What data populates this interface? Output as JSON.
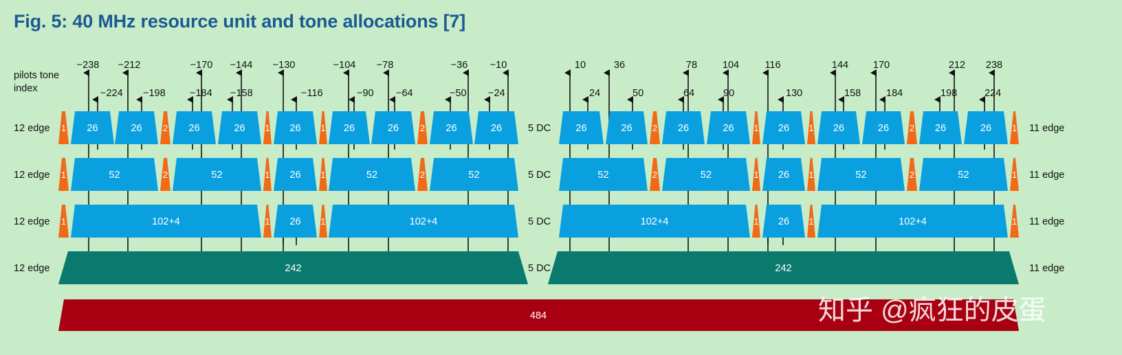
{
  "title": "Fig. 5: 40 MHz resource unit and tone allocations [7]",
  "watermark": "知乎 @疯狂的皮蛋",
  "colors": {
    "background": "#c8ecc8",
    "title": "#1a5a92",
    "ru": "#0aa0e0",
    "edge": "#f06a18",
    "ru242": "#0a7a6e",
    "ru484": "#a80010"
  },
  "pilots": {
    "label_line1": "pilots tone",
    "label_line2": "index",
    "tall": [
      "−238",
      "−212",
      "−170",
      "−144",
      "−130",
      "−104",
      "−78",
      "−36",
      "−10",
      "10",
      "36",
      "78",
      "104",
      "116",
      "144",
      "170",
      "212",
      "238"
    ],
    "short": [
      "−224",
      "−198",
      "−184",
      "−158",
      "−116",
      "−90",
      "−64",
      "−50",
      "−24",
      "24",
      "50",
      "64",
      "90",
      "130",
      "158",
      "184",
      "198",
      "224"
    ]
  },
  "rows": [
    {
      "left_label": "12 edge",
      "right_label": "11 edge",
      "dc_label": "5 DC",
      "left": [
        {
          "kind": "edge",
          "label": "1"
        },
        {
          "kind": "ru",
          "label": "26"
        },
        {
          "kind": "ru",
          "label": "26"
        },
        {
          "kind": "edge",
          "label": "2"
        },
        {
          "kind": "ru",
          "label": "26"
        },
        {
          "kind": "ru",
          "label": "26"
        },
        {
          "kind": "edge",
          "label": "1"
        },
        {
          "kind": "ru",
          "label": "26"
        },
        {
          "kind": "edge",
          "label": "1"
        },
        {
          "kind": "ru",
          "label": "26"
        },
        {
          "kind": "ru",
          "label": "26"
        },
        {
          "kind": "edge",
          "label": "2"
        },
        {
          "kind": "ru",
          "label": "26"
        },
        {
          "kind": "ru",
          "label": "26"
        }
      ],
      "right": [
        {
          "kind": "ru",
          "label": "26"
        },
        {
          "kind": "ru",
          "label": "26"
        },
        {
          "kind": "edge",
          "label": "2"
        },
        {
          "kind": "ru",
          "label": "26"
        },
        {
          "kind": "ru",
          "label": "26"
        },
        {
          "kind": "edge",
          "label": "1"
        },
        {
          "kind": "ru",
          "label": "26"
        },
        {
          "kind": "edge",
          "label": "1"
        },
        {
          "kind": "ru",
          "label": "26"
        },
        {
          "kind": "ru",
          "label": "26"
        },
        {
          "kind": "edge",
          "label": "2"
        },
        {
          "kind": "ru",
          "label": "26"
        },
        {
          "kind": "ru",
          "label": "26"
        },
        {
          "kind": "edge",
          "label": "1"
        }
      ]
    },
    {
      "left_label": "12 edge",
      "right_label": "11 edge",
      "dc_label": "5 DC",
      "left": [
        {
          "kind": "edge",
          "label": "1"
        },
        {
          "kind": "ru",
          "label": "52"
        },
        {
          "kind": "edge",
          "label": "2"
        },
        {
          "kind": "ru",
          "label": "52"
        },
        {
          "kind": "edge",
          "label": "1"
        },
        {
          "kind": "ru",
          "label": "26"
        },
        {
          "kind": "edge",
          "label": "1"
        },
        {
          "kind": "ru",
          "label": "52"
        },
        {
          "kind": "edge",
          "label": "2"
        },
        {
          "kind": "ru",
          "label": "52"
        }
      ],
      "right": [
        {
          "kind": "ru",
          "label": "52"
        },
        {
          "kind": "edge",
          "label": "2"
        },
        {
          "kind": "ru",
          "label": "52"
        },
        {
          "kind": "edge",
          "label": "1"
        },
        {
          "kind": "ru",
          "label": "26"
        },
        {
          "kind": "edge",
          "label": "1"
        },
        {
          "kind": "ru",
          "label": "52"
        },
        {
          "kind": "edge",
          "label": "2"
        },
        {
          "kind": "ru",
          "label": "52"
        },
        {
          "kind": "edge",
          "label": "1"
        }
      ]
    },
    {
      "left_label": "12 edge",
      "right_label": "11 edge",
      "dc_label": "5 DC",
      "left": [
        {
          "kind": "edge",
          "label": "1"
        },
        {
          "kind": "ru",
          "label": "102+4"
        },
        {
          "kind": "edge",
          "label": "1"
        },
        {
          "kind": "ru",
          "label": "26"
        },
        {
          "kind": "edge",
          "label": "1"
        },
        {
          "kind": "ru",
          "label": "102+4"
        }
      ],
      "right": [
        {
          "kind": "ru",
          "label": "102+4"
        },
        {
          "kind": "edge",
          "label": "1"
        },
        {
          "kind": "ru",
          "label": "26"
        },
        {
          "kind": "edge",
          "label": "1"
        },
        {
          "kind": "ru",
          "label": "102+4"
        },
        {
          "kind": "edge",
          "label": "1"
        }
      ]
    },
    {
      "left_label": "12 edge",
      "right_label": "11 edge",
      "dc_label": "5 DC",
      "left": [
        {
          "kind": "ru242",
          "label": "242"
        }
      ],
      "right": [
        {
          "kind": "ru242",
          "label": "242"
        }
      ]
    }
  ],
  "ru484_label": "484"
}
